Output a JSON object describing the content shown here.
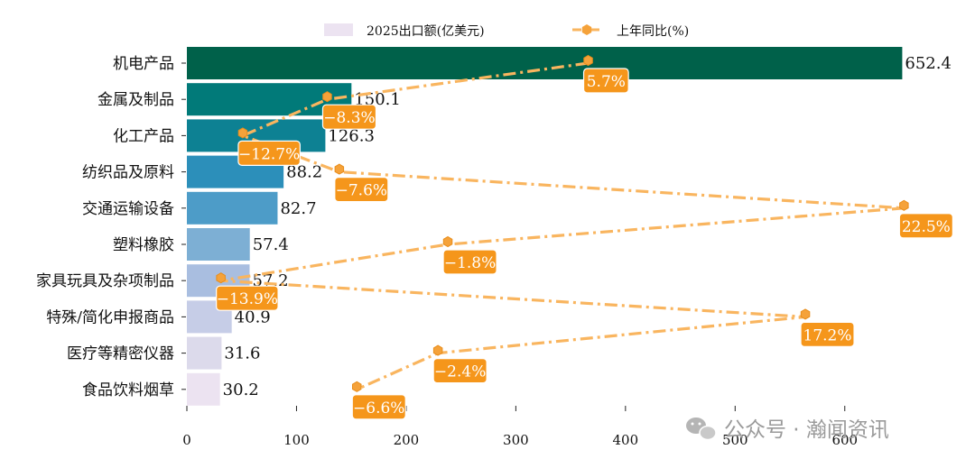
{
  "chart_data": {
    "type": "bar",
    "orientation": "horizontal",
    "categories": [
      "机电产品",
      "金属及制品",
      "化工产品",
      "纺织品及原料",
      "交通运输设备",
      "塑料橡胶",
      "家具玩具及杂项制品",
      "特殊/简化申报商品",
      "医疗等精密仪器",
      "食品饮料烟草"
    ],
    "series": [
      {
        "name": "2025出口额(亿美元)",
        "type": "bar",
        "values": [
          652.4,
          150.1,
          126.3,
          88.2,
          82.7,
          57.4,
          57.2,
          40.9,
          31.6,
          30.2
        ],
        "labels": [
          "652.4",
          "150.1",
          "126.3",
          "88.2",
          "82.7",
          "57.4",
          "57.2",
          "40.9",
          "31.6",
          "30.2"
        ],
        "colors": [
          "#00614a",
          "#017a79",
          "#0d8193",
          "#2c8fba",
          "#4d9cc8",
          "#7dafd4",
          "#a9bee0",
          "#c6cde7",
          "#dcdaeb",
          "#ece3f1"
        ]
      },
      {
        "name": "上年同比(%)",
        "type": "line",
        "x_values": [
          366,
          128,
          51,
          139,
          654,
          238,
          31,
          564,
          229,
          155
        ],
        "values": [
          5.7,
          -8.3,
          -12.7,
          -7.6,
          22.5,
          -1.8,
          -13.9,
          17.2,
          -2.4,
          -6.6
        ],
        "labels": [
          "5.7%",
          "−8.3%",
          "−12.7%",
          "−7.6%",
          "22.5%",
          "−1.8%",
          "−13.9%",
          "17.2%",
          "−2.4%",
          "−6.6%"
        ],
        "color": "#f9b55f",
        "label_color": "#f5961b"
      }
    ],
    "xlim": [
      0,
      700
    ],
    "xticks": [
      0,
      100,
      200,
      300,
      400,
      500,
      600
    ],
    "xtick_labels": [
      "0",
      "100",
      "200",
      "300",
      "400",
      "500",
      "600"
    ],
    "legend_position": "top",
    "title": "",
    "xlabel": "",
    "ylabel": ""
  },
  "watermark": {
    "text": "公众号 · 瀚闻资讯",
    "icon": "wechat-icon"
  }
}
